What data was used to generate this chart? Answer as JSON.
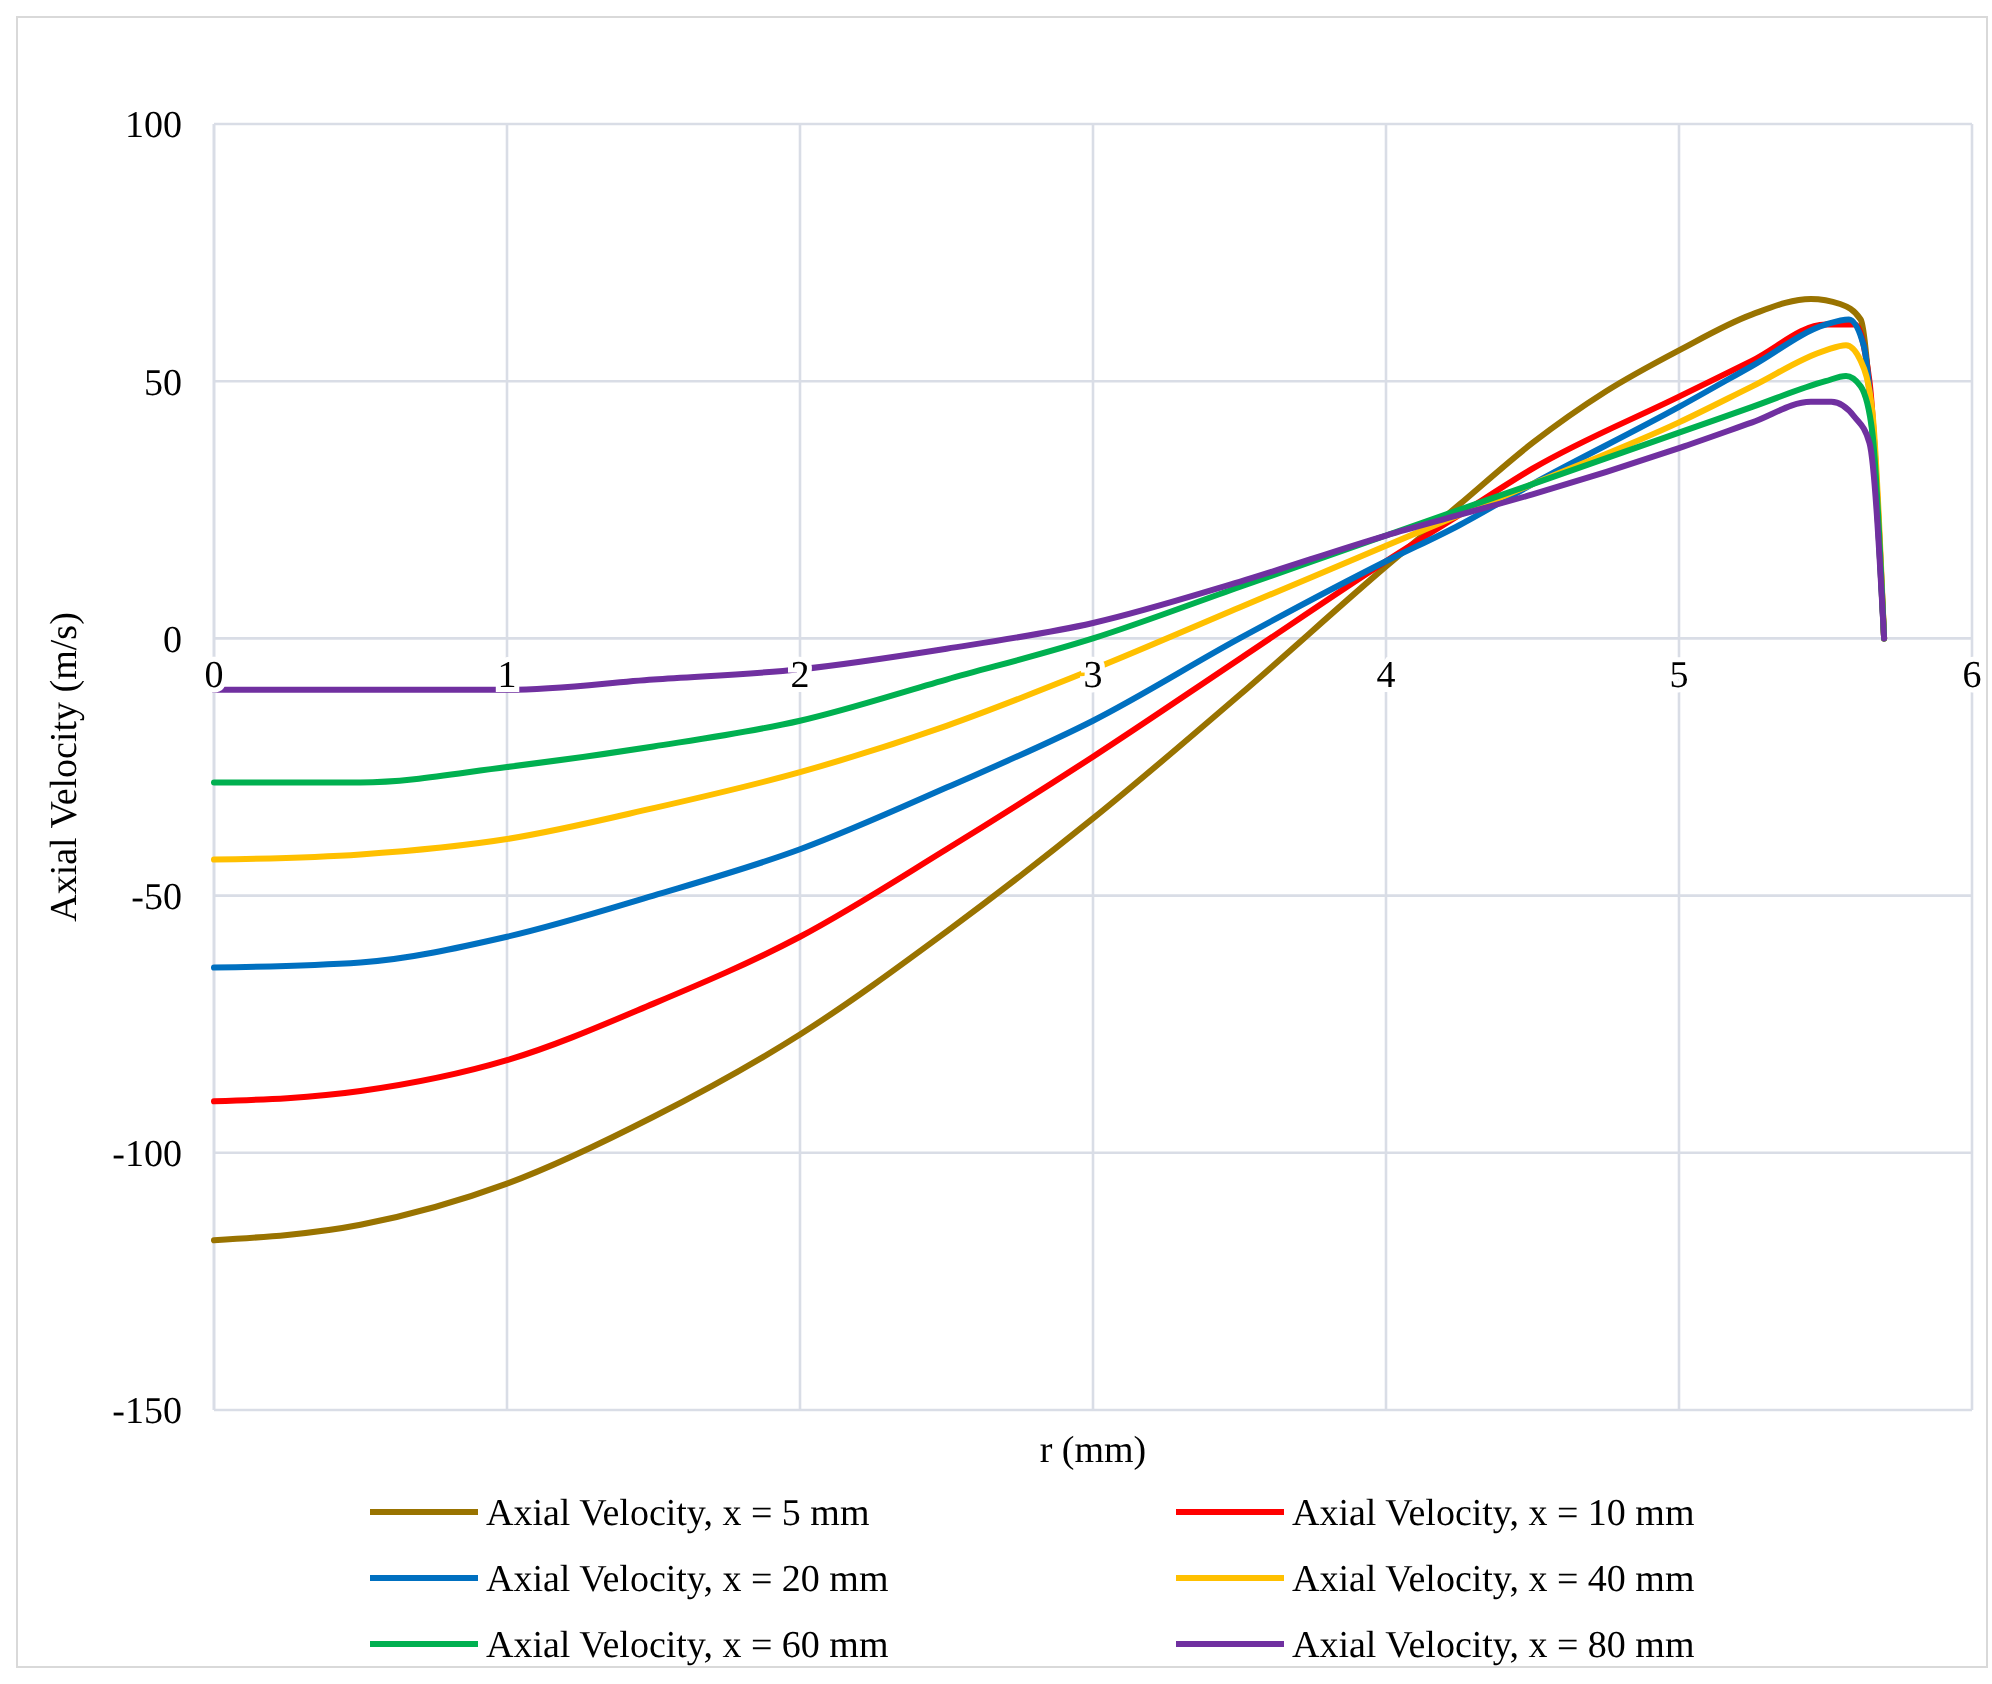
{
  "chart_data": {
    "type": "line",
    "xlabel": "r (mm)",
    "ylabel": "Axial Velocity (m/s)",
    "xlim": [
      0,
      6
    ],
    "xticks": [
      0,
      1,
      2,
      3,
      4,
      5,
      6
    ],
    "ylim": [
      -150,
      100
    ],
    "yticks": [
      -150,
      -100,
      -50,
      0,
      50,
      100
    ],
    "grid": true,
    "legend": "bottom",
    "marker": "none",
    "line_style": "solid",
    "series": [
      {
        "name": "Axial Velocity, x = 5 mm",
        "color": "#997300",
        "x": [
          0,
          0.5,
          1,
          1.5,
          2,
          2.5,
          3,
          3.5,
          4,
          4.25,
          4.5,
          4.75,
          5,
          5.25,
          5.45,
          5.55,
          5.62,
          5.66,
          5.7
        ],
        "values": [
          -117,
          -114,
          -106,
          -93,
          -77,
          -57,
          -35,
          -11,
          14,
          26,
          38,
          48,
          56,
          63,
          66,
          65,
          62,
          40,
          0
        ]
      },
      {
        "name": "Axial Velocity, x = 10 mm",
        "color": "#ff0000",
        "x": [
          0,
          0.5,
          1,
          1.5,
          2,
          2.5,
          3,
          3.5,
          4,
          4.25,
          4.5,
          5,
          5.25,
          5.5,
          5.6,
          5.65,
          5.7
        ],
        "values": [
          -90,
          -88,
          -82,
          -71,
          -58,
          -41,
          -23,
          -4,
          15,
          24,
          33,
          47,
          54,
          61,
          61,
          50,
          0
        ]
      },
      {
        "name": "Axial Velocity, x = 20 mm",
        "color": "#0070c0",
        "x": [
          0,
          0.5,
          1,
          1.5,
          2,
          2.5,
          3,
          3.5,
          4,
          4.25,
          4.5,
          5,
          5.25,
          5.5,
          5.58,
          5.63,
          5.7
        ],
        "values": [
          -64,
          -63,
          -58,
          -50,
          -41,
          -29,
          -16,
          0,
          15,
          22,
          30,
          45,
          53,
          61,
          62,
          57,
          0
        ]
      },
      {
        "name": "Axial Velocity, x = 40 mm",
        "color": "#ffc000",
        "x": [
          0,
          0.5,
          1,
          1.5,
          2,
          2.5,
          3,
          3.5,
          4,
          4.25,
          4.5,
          5,
          5.25,
          5.5,
          5.57,
          5.62,
          5.66,
          5.7
        ],
        "values": [
          -43,
          -42,
          -39,
          -33,
          -26,
          -17,
          -6,
          6,
          18,
          24,
          30,
          42,
          49,
          56,
          57,
          54,
          44,
          0
        ]
      },
      {
        "name": "Axial Velocity, x = 60 mm",
        "color": "#00b050",
        "x": [
          0,
          0.5,
          1,
          1.5,
          2,
          2.5,
          3,
          3.5,
          4,
          4.25,
          4.5,
          5,
          5.25,
          5.5,
          5.57,
          5.62,
          5.66,
          5.7
        ],
        "values": [
          -28,
          -28,
          -25,
          -21,
          -16,
          -8,
          0,
          10,
          20,
          25,
          30,
          40,
          45,
          50,
          51,
          49,
          40,
          0
        ]
      },
      {
        "name": "Axial Velocity, x = 80 mm",
        "color": "#7030a0",
        "x": [
          0,
          0.5,
          1,
          1.5,
          2,
          2.5,
          3,
          3.5,
          4,
          4.25,
          4.5,
          5,
          5.25,
          5.45,
          5.52,
          5.6,
          5.65,
          5.7
        ],
        "values": [
          -10,
          -10,
          -10,
          -8,
          -6,
          -2,
          3,
          11,
          20,
          24,
          28,
          37,
          42,
          46,
          46,
          43,
          38,
          0
        ]
      }
    ]
  }
}
